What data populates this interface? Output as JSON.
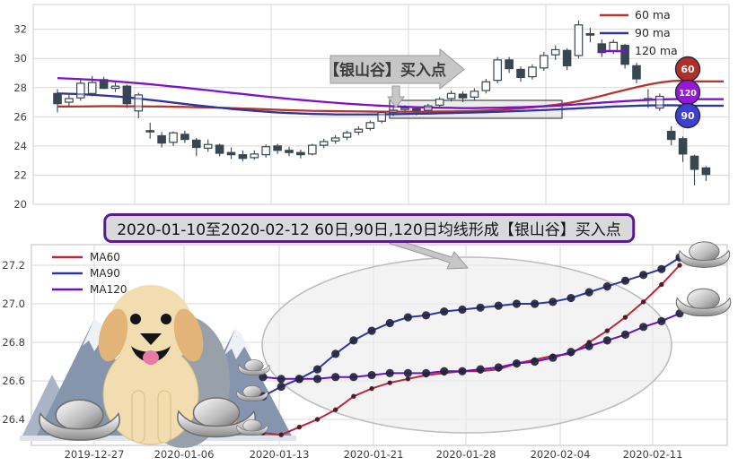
{
  "banner": {
    "text": "2020-01-10至2020-02-12 60日,90日,120日均线形成【银山谷】买入点"
  },
  "colors": {
    "ma60": "#b5342c",
    "ma90": "#2c35a0",
    "ma120": "#7d10cd",
    "ma60_bottom": "#b8283a",
    "ma90_bottom": "#2b35a8",
    "ma120_bottom": "#6b0fbf",
    "candle": "#37474f",
    "grid": "#d7d7d7",
    "axis_label": "#3f3f3f",
    "badge_60": "#b03028",
    "badge_120": "#9617d6",
    "badge_90": "#3f3fd0",
    "annotation_fill": "#c6c6c6",
    "annotation_stroke": "#999999",
    "highlight_box_stroke": "#4a4a4a",
    "ellipse_fill": "#ebebeb",
    "ellipse_stroke": "#bdbdbd",
    "dot_dark": "#23233f",
    "dot_red": "#4a1420"
  },
  "icons": {
    "dog": "golden-retriever-dog",
    "ingot": "silver-yuanbao-ingot",
    "mountain": "snow-mountain",
    "arrow_callout": "right-arrow-callout",
    "down_arrow": "down-arrow",
    "banner_arrow": "diagonal-arrow"
  },
  "chart_data": [
    {
      "type": "candlestick",
      "panel": "top",
      "yticks": [
        20,
        22,
        24,
        26,
        28,
        30,
        32
      ],
      "ylim": [
        20,
        33.7
      ],
      "grid": true,
      "legend_position": "upper right",
      "legend": [
        {
          "label": "60 ma",
          "color": "#b5342c"
        },
        {
          "label": "90 ma",
          "color": "#2c35a0"
        },
        {
          "label": "120 ma",
          "color": "#7d10cd"
        }
      ],
      "end_badges": [
        {
          "label": "60",
          "color": "#b03028"
        },
        {
          "label": "120",
          "color": "#9617d6"
        },
        {
          "label": "90",
          "color": "#3f3fd0"
        }
      ],
      "annotations": {
        "callout_text": "【银山谷】买入点",
        "highlight_box": "ma-convergence-zone"
      },
      "candles_ohlc": [
        [
          27.6,
          27.9,
          26.3,
          26.9
        ],
        [
          27.0,
          27.5,
          26.75,
          27.25
        ],
        [
          27.3,
          28.55,
          27.1,
          28.3
        ],
        [
          27.6,
          28.8,
          27.4,
          28.35
        ],
        [
          28.55,
          28.75,
          27.9,
          27.95
        ],
        [
          27.95,
          28.35,
          27.7,
          28.1
        ],
        [
          28.1,
          28.2,
          26.6,
          26.9
        ],
        [
          26.4,
          27.65,
          25.9,
          27.5
        ],
        [
          25.05,
          25.6,
          24.5,
          25.0
        ],
        [
          24.7,
          24.95,
          23.9,
          24.2
        ],
        [
          24.25,
          25.0,
          24.0,
          24.9
        ],
        [
          24.8,
          25.05,
          24.2,
          24.45
        ],
        [
          24.4,
          24.55,
          23.3,
          23.9
        ],
        [
          23.85,
          24.45,
          23.6,
          24.1
        ],
        [
          24.05,
          24.15,
          23.3,
          23.5
        ],
        [
          23.55,
          23.9,
          23.1,
          23.4
        ],
        [
          23.4,
          23.7,
          22.95,
          23.15
        ],
        [
          23.2,
          23.7,
          23.05,
          23.45
        ],
        [
          23.4,
          24.1,
          23.2,
          23.95
        ],
        [
          24.0,
          24.15,
          23.45,
          23.7
        ],
        [
          23.7,
          23.95,
          23.3,
          23.55
        ],
        [
          23.55,
          23.75,
          23.15,
          23.4
        ],
        [
          23.45,
          24.15,
          23.35,
          24.05
        ],
        [
          24.05,
          24.5,
          23.85,
          24.3
        ],
        [
          24.35,
          24.75,
          24.15,
          24.55
        ],
        [
          24.6,
          25.05,
          24.4,
          24.9
        ],
        [
          24.95,
          25.35,
          24.75,
          25.15
        ],
        [
          25.2,
          25.75,
          25.05,
          25.6
        ],
        [
          25.7,
          26.4,
          25.55,
          26.3
        ],
        [
          26.3,
          26.65,
          26.05,
          26.45
        ],
        [
          26.5,
          26.8,
          26.25,
          26.6
        ],
        [
          26.55,
          26.7,
          26.1,
          26.4
        ],
        [
          26.45,
          26.9,
          26.3,
          26.75
        ],
        [
          26.8,
          27.35,
          26.6,
          27.2
        ],
        [
          27.25,
          27.8,
          27.05,
          27.6
        ],
        [
          27.55,
          27.75,
          27.0,
          27.3
        ],
        [
          27.35,
          27.95,
          27.15,
          27.75
        ],
        [
          27.8,
          28.6,
          27.6,
          28.4
        ],
        [
          28.5,
          30.1,
          28.3,
          29.9
        ],
        [
          29.9,
          30.1,
          29.0,
          29.3
        ],
        [
          29.25,
          29.45,
          28.4,
          28.7
        ],
        [
          28.75,
          29.6,
          28.55,
          29.4
        ],
        [
          29.35,
          30.45,
          29.15,
          30.2
        ],
        [
          30.25,
          30.9,
          29.9,
          30.6
        ],
        [
          30.55,
          30.7,
          29.2,
          29.5
        ],
        [
          30.2,
          32.6,
          30.0,
          32.3
        ],
        [
          31.7,
          32.1,
          31.1,
          31.6
        ],
        [
          31.0,
          31.3,
          30.1,
          30.4
        ],
        [
          30.5,
          31.3,
          30.3,
          31.1
        ],
        [
          30.9,
          31.0,
          29.3,
          29.6
        ],
        [
          29.5,
          29.7,
          28.3,
          28.6
        ],
        [
          27.2,
          27.9,
          26.6,
          27.25
        ],
        [
          26.6,
          27.6,
          26.4,
          27.4
        ],
        [
          25.0,
          25.35,
          24.05,
          24.45
        ],
        [
          24.5,
          24.65,
          22.9,
          23.45
        ],
        [
          23.3,
          23.4,
          21.3,
          22.4
        ],
        [
          22.5,
          22.6,
          21.6,
          22.05
        ]
      ],
      "series": [
        {
          "name": "60 ma",
          "color": "#b5342c",
          "values": [
            26.7,
            26.7,
            26.71,
            26.72,
            26.73,
            26.73,
            26.72,
            26.72,
            26.71,
            26.7,
            26.69,
            26.68,
            26.66,
            26.64,
            26.62,
            26.6,
            26.57,
            26.54,
            26.51,
            26.48,
            26.45,
            26.43,
            26.41,
            26.4,
            26.39,
            26.38,
            26.37,
            26.36,
            26.35,
            26.35,
            26.35,
            26.35,
            26.35,
            26.36,
            26.37,
            26.38,
            26.4,
            26.43,
            26.47,
            26.52,
            26.58,
            26.65,
            26.73,
            26.82,
            26.93,
            27.08,
            27.25,
            27.44,
            27.64,
            27.84,
            28.03,
            28.2,
            28.35,
            28.45,
            28.48,
            28.42
          ]
        },
        {
          "name": "90 ma",
          "color": "#2c35a0",
          "values": [
            27.6,
            27.58,
            27.55,
            27.51,
            27.46,
            27.4,
            27.33,
            27.25,
            27.16,
            27.07,
            26.97,
            26.88,
            26.79,
            26.7,
            26.62,
            26.54,
            26.47,
            26.41,
            26.35,
            26.3,
            26.26,
            26.23,
            26.2,
            26.18,
            26.17,
            26.16,
            26.16,
            26.16,
            26.17,
            26.18,
            26.19,
            26.21,
            26.22,
            26.24,
            26.26,
            26.28,
            26.3,
            26.32,
            26.34,
            26.37,
            26.4,
            26.43,
            26.46,
            26.5,
            26.54,
            26.58,
            26.62,
            26.66,
            26.7,
            26.73,
            26.76,
            26.78,
            26.79,
            26.79,
            26.78,
            26.76
          ]
        },
        {
          "name": "120 ma",
          "color": "#7d10cd",
          "values": [
            28.65,
            28.62,
            28.58,
            28.54,
            28.49,
            28.43,
            28.37,
            28.3,
            28.23,
            28.15,
            28.07,
            27.99,
            27.9,
            27.82,
            27.73,
            27.64,
            27.56,
            27.47,
            27.39,
            27.31,
            27.23,
            27.16,
            27.09,
            27.02,
            26.96,
            26.9,
            26.85,
            26.8,
            26.76,
            26.72,
            26.69,
            26.66,
            26.64,
            26.62,
            26.61,
            26.6,
            26.6,
            26.61,
            26.62,
            26.64,
            26.66,
            26.69,
            26.72,
            26.76,
            26.81,
            26.86,
            26.91,
            26.97,
            27.02,
            27.07,
            27.12,
            27.16,
            27.19,
            27.21,
            27.22,
            27.21
          ]
        }
      ]
    },
    {
      "type": "line",
      "panel": "bottom",
      "x": [
        "2020-01-10",
        "2020-01-13",
        "2020-01-14",
        "2020-01-15",
        "2020-01-16",
        "2020-01-17",
        "2020-01-20",
        "2020-01-21",
        "2020-01-22",
        "2020-01-23",
        "2020-01-24",
        "2020-01-27",
        "2020-01-28",
        "2020-01-29",
        "2020-01-30",
        "2020-01-31",
        "2020-02-03",
        "2020-02-04",
        "2020-02-05",
        "2020-02-06",
        "2020-02-07",
        "2020-02-10",
        "2020-02-11",
        "2020-02-12"
      ],
      "xticks": [
        "2019-12-27",
        "2020-01-06",
        "2020-01-13",
        "2020-01-21",
        "2020-01-28",
        "2020-02-04",
        "2020-02-11"
      ],
      "yticks": [
        26.4,
        26.6,
        26.8,
        27.0,
        27.2
      ],
      "ylim": [
        26.265,
        27.31
      ],
      "grid": true,
      "legend_position": "upper left",
      "legend": [
        {
          "label": "MA60",
          "color": "#b8283a"
        },
        {
          "label": "MA90",
          "color": "#2b35a8"
        },
        {
          "label": "MA120",
          "color": "#6b0fbf"
        }
      ],
      "series": [
        {
          "name": "MA60",
          "color": "#b8283a",
          "values": [
            26.33,
            26.32,
            26.36,
            26.4,
            26.45,
            26.52,
            26.56,
            26.59,
            26.61,
            26.63,
            26.64,
            26.65,
            26.65,
            26.66,
            26.69,
            26.71,
            26.73,
            26.74,
            26.8,
            26.86,
            26.93,
            27.01,
            27.1,
            27.2
          ]
        },
        {
          "name": "MA90",
          "color": "#2b35a8",
          "values": [
            26.52,
            26.57,
            26.61,
            26.66,
            26.74,
            26.81,
            26.86,
            26.9,
            26.93,
            26.94,
            26.96,
            26.97,
            26.98,
            26.99,
            27.0,
            27.0,
            27.01,
            27.03,
            27.06,
            27.09,
            27.12,
            27.15,
            27.18,
            27.24
          ]
        },
        {
          "name": "MA120",
          "color": "#6b0fbf",
          "values": [
            26.62,
            26.61,
            26.61,
            26.61,
            26.62,
            26.62,
            26.63,
            26.64,
            26.64,
            26.64,
            26.65,
            26.65,
            26.66,
            26.67,
            26.69,
            26.7,
            26.72,
            26.75,
            26.78,
            26.81,
            26.84,
            26.88,
            26.91,
            26.95
          ]
        }
      ]
    }
  ]
}
